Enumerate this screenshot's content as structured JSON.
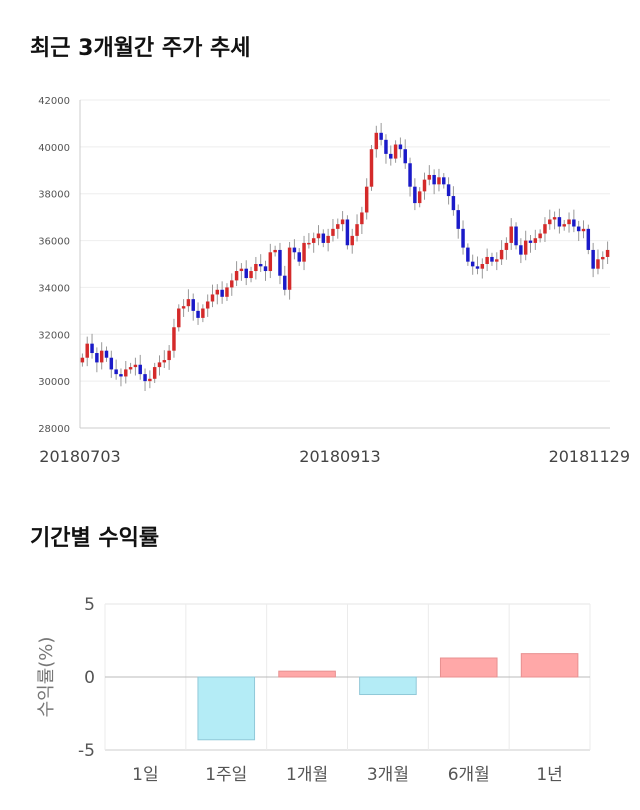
{
  "chart_data": [
    {
      "type": "candlestick",
      "title": "최근 3개월간 주가 추세",
      "ylim": [
        28000,
        42000
      ],
      "yticks": [
        28000,
        30000,
        32000,
        34000,
        36000,
        38000,
        40000,
        42000
      ],
      "xtick_labels": [
        "20180703",
        "20180913",
        "20181129"
      ],
      "grid": true,
      "colors": {
        "up": "#d42a2a",
        "down": "#1a1ac8",
        "wick": "#999999"
      },
      "closes": [
        31000,
        31600,
        31200,
        30800,
        31300,
        31000,
        30500,
        30300,
        30200,
        30500,
        30600,
        30700,
        30300,
        30000,
        30100,
        30600,
        30800,
        30900,
        31300,
        32300,
        33100,
        33200,
        33500,
        33000,
        32700,
        33100,
        33400,
        33700,
        33900,
        33600,
        34000,
        34300,
        34700,
        34800,
        34400,
        34700,
        35000,
        34900,
        34700,
        35500,
        35600,
        34500,
        33900,
        35700,
        35500,
        35100,
        35900,
        35900,
        36100,
        36300,
        35900,
        36200,
        36500,
        36700,
        36900,
        35800,
        36200,
        36700,
        37200,
        38300,
        39900,
        40600,
        40300,
        39700,
        39500,
        40100,
        39900,
        39300,
        38300,
        37600,
        38100,
        38600,
        38800,
        38400,
        38700,
        38400,
        37900,
        37300,
        36500,
        35700,
        35100,
        34900,
        34800,
        35000,
        35300,
        35100,
        35200,
        35600,
        35900,
        36600,
        35800,
        35400,
        36000,
        35900,
        36100,
        36300,
        36700,
        36900,
        37000,
        36600,
        36700,
        36900,
        36600,
        36400,
        36500,
        35600,
        34800,
        35200,
        35300,
        35600
      ]
    },
    {
      "type": "bar",
      "title": "기간별 수익률",
      "ylabel": "수익률(%)",
      "categories": [
        "1일",
        "1주일",
        "1개월",
        "3개월",
        "6개월",
        "1년"
      ],
      "values": [
        0.0,
        -4.3,
        0.4,
        -1.2,
        1.3,
        1.6
      ],
      "ylim": [
        -5,
        5
      ],
      "yticks": [
        -5,
        0,
        5
      ],
      "grid": true,
      "colors": {
        "positive": "#ffa8a8",
        "positive_stroke": "#e89090",
        "negative": "#b4ecf6",
        "negative_stroke": "#90c8d8"
      }
    }
  ]
}
